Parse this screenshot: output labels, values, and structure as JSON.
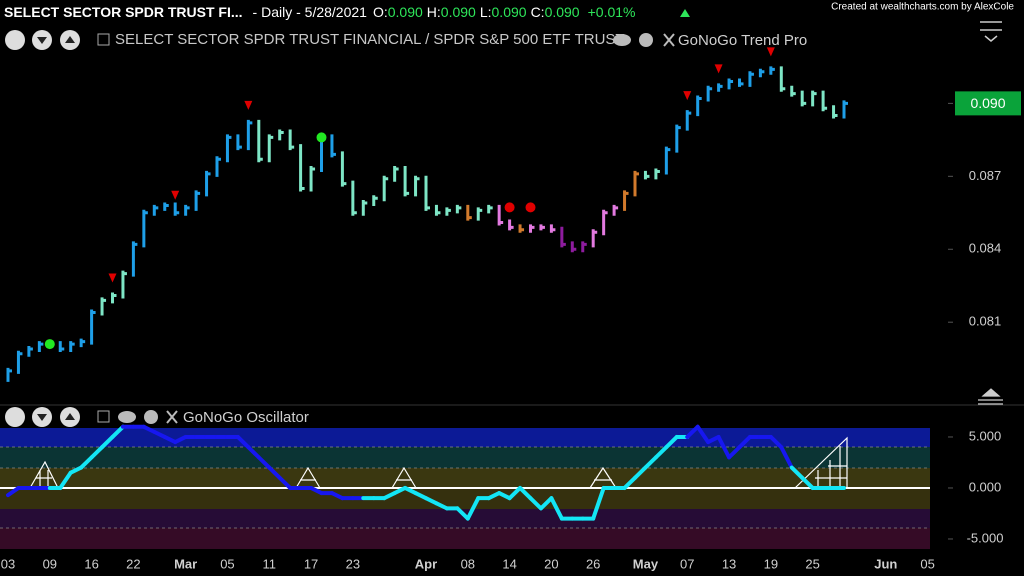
{
  "header": {
    "symbol": "SELECT SECTOR SPDR TRUST FI...",
    "interval": "- Daily - 5/28/2021",
    "open_label": "O:",
    "open": "0.090",
    "high_label": "H:",
    "high": "0.090",
    "low_label": "L:",
    "low": "0.090",
    "close_label": "C:",
    "close": "0.090",
    "change": "+0.01%",
    "credit": "Created at wealthcharts.com by AlexCole",
    "instrument": "SELECT SECTOR SPDR TRUST FINANCIAL / SPDR S&P 500 ETF TRUST"
  },
  "chart_data": [
    {
      "type": "price-bars",
      "title": "GoNoGo Trend Pro",
      "values": [
        0.079,
        0.0797,
        0.0799,
        0.0801,
        0.0801,
        0.0799,
        0.0801,
        0.0802,
        0.0814,
        0.0819,
        0.0821,
        0.083,
        0.0842,
        0.0855,
        0.0857,
        0.0858,
        0.0855,
        0.0857,
        0.0863,
        0.0871,
        0.0877,
        0.0886,
        0.0882,
        0.0892,
        0.0877,
        0.0886,
        0.0888,
        0.0882,
        0.0865,
        0.0873,
        0.0886,
        0.0879,
        0.0867,
        0.0855,
        0.0859,
        0.0861,
        0.0869,
        0.0873,
        0.0863,
        0.0869,
        0.0857,
        0.0855,
        0.0856,
        0.0857,
        0.0853,
        0.0856,
        0.0857,
        0.0851,
        0.0849,
        0.0848,
        0.0849,
        0.0849,
        0.0848,
        0.0842,
        0.084,
        0.0842,
        0.0847,
        0.0855,
        0.0857,
        0.0863,
        0.0871,
        0.087,
        0.0872,
        0.0881,
        0.089,
        0.0896,
        0.0902,
        0.0906,
        0.0907,
        0.0909,
        0.0908,
        0.0912,
        0.0913,
        0.0914,
        0.0906,
        0.0904,
        0.09,
        0.0904,
        0.0898,
        0.0895,
        0.09,
        null,
        null,
        null,
        null,
        null,
        null,
        null,
        null
      ],
      "bar_colors": "BBBBBBBBBAAABBBBBBBBBBBBAAAAAABBAAAAAAAAAAAAOAAPPOPPPUUUPPPOOAABBBBBBBBBBBAAAAAAB",
      "palette": {
        "B": "#1e9fe8",
        "A": "#7ee6c6",
        "O": "#d27a2c",
        "P": "#e37ae0",
        "U": "#8e1c9e"
      },
      "red_triangles": [
        10,
        16,
        23,
        65,
        68,
        73
      ],
      "green_dots": [
        4,
        30
      ],
      "red_dots": [
        48,
        50
      ],
      "ylim": [
        0.0778,
        0.0931
      ],
      "yticks": [
        0.081,
        0.084,
        0.087,
        {
          "value": 0.09,
          "label": "0.090"
        }
      ],
      "last_price": {
        "value": 0.09,
        "label": "0.090"
      }
    },
    {
      "type": "oscillator",
      "title": "GoNoGo Oscillator",
      "categories": [
        "03",
        null,
        null,
        null,
        "09",
        null,
        null,
        null,
        "16",
        null,
        null,
        null,
        "22",
        null,
        null,
        null,
        null,
        "Mar",
        null,
        null,
        null,
        "05",
        null,
        null,
        null,
        "11",
        null,
        null,
        null,
        "17",
        null,
        null,
        null,
        "23",
        null,
        null,
        null,
        null,
        null,
        null,
        "Apr",
        null,
        null,
        null,
        "08",
        null,
        null,
        null,
        "14",
        null,
        null,
        null,
        "20",
        null,
        null,
        null,
        "26",
        null,
        null,
        null,
        null,
        "May",
        null,
        null,
        null,
        "07",
        null,
        null,
        null,
        "13",
        null,
        null,
        null,
        "19",
        null,
        null,
        null,
        "25",
        null,
        null,
        null,
        null,
        null,
        null,
        "Jun",
        null,
        null,
        null,
        "05"
      ],
      "values": [
        -0.7,
        0,
        0,
        0,
        0,
        0,
        1.5,
        2,
        3,
        4,
        5,
        6,
        6,
        6,
        5.5,
        5,
        4.5,
        5,
        5,
        5,
        5,
        5,
        5,
        4,
        3,
        2,
        1,
        0,
        0,
        0,
        -0.5,
        -0.5,
        -1,
        -1,
        -1,
        -1,
        -1,
        -0.5,
        0,
        -0.5,
        -1,
        -1.5,
        -2,
        -2,
        -3,
        -1,
        -1,
        -0.5,
        -1,
        0,
        -1,
        -2,
        -1,
        -3,
        -3,
        -3,
        -3,
        0,
        0,
        0,
        1,
        2,
        3,
        4,
        5,
        5,
        6,
        4.5,
        5,
        3,
        4,
        5,
        5,
        5,
        4,
        2,
        1,
        0,
        0,
        0,
        0,
        null,
        null,
        null,
        null,
        null,
        null,
        null,
        null
      ],
      "line_colors": "NNNNNCCCCCCCNNNNNNNNNNNNNNNNNNNNNNNCCCCCCCCCCCCCCCCCCCCCCCCCCCCCCCNNNNNNNNNNCCCCC",
      "palette": {
        "N": "#1717f0",
        "C": "#13e6f5"
      },
      "ylim": [
        -6.08,
        5.88
      ],
      "yticks": [
        {
          "value": 5,
          "label": "5.000"
        },
        {
          "value": 0,
          "label": "0.000"
        },
        {
          "value": -5,
          "label": "-5.000"
        }
      ]
    }
  ]
}
